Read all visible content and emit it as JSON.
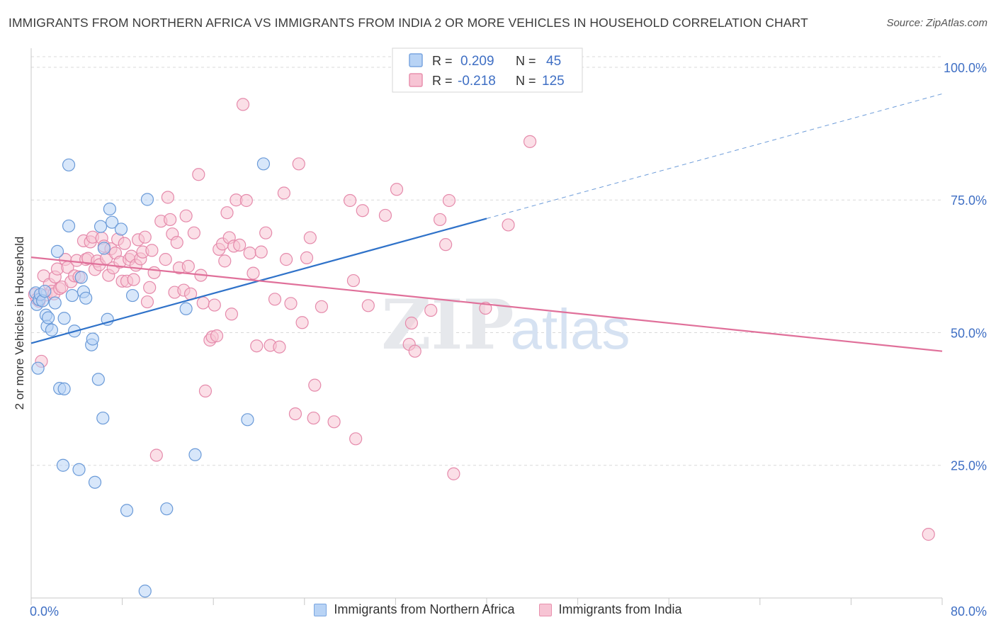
{
  "header": {
    "title": "IMMIGRANTS FROM NORTHERN AFRICA VS IMMIGRANTS FROM INDIA 2 OR MORE VEHICLES IN HOUSEHOLD CORRELATION CHART",
    "source": "Source: ZipAtlas.com"
  },
  "watermark": {
    "zip": "ZIP",
    "atlas": "atlas"
  },
  "legend_box": {
    "r_label": "R =",
    "n_label": "N =",
    "rows": [
      {
        "r": "0.209",
        "n": "45"
      },
      {
        "r": "-0.218",
        "n": "125"
      }
    ]
  },
  "colors": {
    "blue_fill": "#b8d3f5",
    "blue_stroke": "#6a9ad8",
    "blue_line": "#2f72c9",
    "pink_fill": "#f7c4d4",
    "pink_stroke": "#e58aab",
    "pink_line": "#e0709a",
    "tick_text": "#3f6fc4",
    "grid": "#d9d9d9"
  },
  "chart_data": {
    "type": "scatter",
    "title": "IMMIGRANTS FROM NORTHERN AFRICA VS IMMIGRANTS FROM INDIA 2 OR MORE VEHICLES IN HOUSEHOLD CORRELATION CHART",
    "xlabel": "",
    "ylabel": "2 or more Vehicles in Household",
    "xlim": [
      0,
      80
    ],
    "ylim": [
      0,
      102
    ],
    "x_tick_labels": [
      "0.0%",
      "80.0%"
    ],
    "y_ticks": [
      25,
      50,
      75,
      100
    ],
    "y_tick_labels": [
      "25.0%",
      "50.0%",
      "75.0%",
      "100.0%"
    ],
    "grid": true,
    "legend_position": "bottom",
    "series": [
      {
        "name": "Immigrants from Northern Africa",
        "r": 0.209,
        "n": 45,
        "trend": {
          "x0": 0,
          "y0": 48.0,
          "x1": 40,
          "y1": 71.5,
          "dash_x1": 80,
          "dash_y1": 95.0
        },
        "points": [
          [
            0.4,
            57.5
          ],
          [
            0.5,
            55.3
          ],
          [
            0.6,
            43.3
          ],
          [
            0.7,
            56.2
          ],
          [
            0.8,
            57.2
          ],
          [
            1.0,
            56.0
          ],
          [
            1.2,
            57.8
          ],
          [
            1.3,
            53.3
          ],
          [
            1.4,
            51.2
          ],
          [
            1.5,
            52.8
          ],
          [
            1.8,
            50.5
          ],
          [
            2.1,
            55.6
          ],
          [
            2.3,
            65.3
          ],
          [
            2.5,
            39.5
          ],
          [
            2.9,
            52.7
          ],
          [
            2.9,
            39.4
          ],
          [
            2.8,
            25.0
          ],
          [
            3.3,
            70.1
          ],
          [
            3.3,
            81.6
          ],
          [
            3.6,
            57.0
          ],
          [
            3.8,
            50.3
          ],
          [
            4.2,
            24.2
          ],
          [
            4.4,
            60.4
          ],
          [
            4.6,
            57.7
          ],
          [
            4.8,
            56.5
          ],
          [
            5.3,
            47.7
          ],
          [
            5.4,
            48.8
          ],
          [
            5.6,
            21.8
          ],
          [
            5.9,
            41.2
          ],
          [
            6.1,
            70.0
          ],
          [
            6.4,
            65.9
          ],
          [
            6.3,
            33.9
          ],
          [
            6.7,
            52.5
          ],
          [
            6.9,
            73.3
          ],
          [
            7.1,
            70.8
          ],
          [
            7.9,
            69.5
          ],
          [
            8.4,
            16.5
          ],
          [
            8.9,
            57.0
          ],
          [
            10.0,
            1.3
          ],
          [
            10.2,
            75.1
          ],
          [
            11.9,
            16.8
          ],
          [
            13.6,
            54.5
          ],
          [
            14.4,
            27.0
          ],
          [
            19.0,
            33.6
          ],
          [
            20.4,
            81.8
          ]
        ]
      },
      {
        "name": "Immigrants from India",
        "r": -0.218,
        "n": 125,
        "trend": {
          "x0": 0,
          "y0": 64.2,
          "x1": 80,
          "y1": 46.5
        },
        "points": [
          [
            0.3,
            57.2
          ],
          [
            0.5,
            56.3
          ],
          [
            0.7,
            55.9
          ],
          [
            0.9,
            44.6
          ],
          [
            1.1,
            60.7
          ],
          [
            1.3,
            57.1
          ],
          [
            1.6,
            59.1
          ],
          [
            1.8,
            57.8
          ],
          [
            2.0,
            57.3
          ],
          [
            2.1,
            60.5
          ],
          [
            2.3,
            62.0
          ],
          [
            2.5,
            58.3
          ],
          [
            2.7,
            58.6
          ],
          [
            3.0,
            63.8
          ],
          [
            3.2,
            62.3
          ],
          [
            3.5,
            59.6
          ],
          [
            3.8,
            60.7
          ],
          [
            4.0,
            63.6
          ],
          [
            4.2,
            60.5
          ],
          [
            4.6,
            67.3
          ],
          [
            4.8,
            63.8
          ],
          [
            5.0,
            64.0
          ],
          [
            5.2,
            67.1
          ],
          [
            5.4,
            68.0
          ],
          [
            5.6,
            61.9
          ],
          [
            5.8,
            63.5
          ],
          [
            6.0,
            62.8
          ],
          [
            6.2,
            67.8
          ],
          [
            6.4,
            66.3
          ],
          [
            6.6,
            64.0
          ],
          [
            6.8,
            60.8
          ],
          [
            7.0,
            65.8
          ],
          [
            7.2,
            62.2
          ],
          [
            7.4,
            65.0
          ],
          [
            7.6,
            67.6
          ],
          [
            7.8,
            63.3
          ],
          [
            8.0,
            59.7
          ],
          [
            8.2,
            66.8
          ],
          [
            8.4,
            59.7
          ],
          [
            8.6,
            63.8
          ],
          [
            8.8,
            64.4
          ],
          [
            9.0,
            60.0
          ],
          [
            9.2,
            62.7
          ],
          [
            9.4,
            67.5
          ],
          [
            9.6,
            63.9
          ],
          [
            9.8,
            65.2
          ],
          [
            10.0,
            68.0
          ],
          [
            10.2,
            55.8
          ],
          [
            10.4,
            58.5
          ],
          [
            10.6,
            65.5
          ],
          [
            10.8,
            61.3
          ],
          [
            11.0,
            26.9
          ],
          [
            11.4,
            71.0
          ],
          [
            11.8,
            63.8
          ],
          [
            12.0,
            75.5
          ],
          [
            12.2,
            71.3
          ],
          [
            12.4,
            68.6
          ],
          [
            12.6,
            57.6
          ],
          [
            12.8,
            67.0
          ],
          [
            13.0,
            62.2
          ],
          [
            13.4,
            58.0
          ],
          [
            13.6,
            72.0
          ],
          [
            13.8,
            62.5
          ],
          [
            14.0,
            57.3
          ],
          [
            14.3,
            68.8
          ],
          [
            14.7,
            79.8
          ],
          [
            14.9,
            60.8
          ],
          [
            15.1,
            55.6
          ],
          [
            15.3,
            39.0
          ],
          [
            15.7,
            48.6
          ],
          [
            15.9,
            49.2
          ],
          [
            16.1,
            55.2
          ],
          [
            16.3,
            49.4
          ],
          [
            16.5,
            65.7
          ],
          [
            16.8,
            66.7
          ],
          [
            17.0,
            63.5
          ],
          [
            17.2,
            72.6
          ],
          [
            17.4,
            67.9
          ],
          [
            17.6,
            53.5
          ],
          [
            17.8,
            66.3
          ],
          [
            18.0,
            75.0
          ],
          [
            18.3,
            66.5
          ],
          [
            18.6,
            93.0
          ],
          [
            18.9,
            74.9
          ],
          [
            19.2,
            65.0
          ],
          [
            19.5,
            61.2
          ],
          [
            19.8,
            47.5
          ],
          [
            20.2,
            65.2
          ],
          [
            20.6,
            68.8
          ],
          [
            21.0,
            47.6
          ],
          [
            21.4,
            56.3
          ],
          [
            21.8,
            47.3
          ],
          [
            22.2,
            76.3
          ],
          [
            22.4,
            63.8
          ],
          [
            22.8,
            55.5
          ],
          [
            23.2,
            34.7
          ],
          [
            23.5,
            81.8
          ],
          [
            23.8,
            51.9
          ],
          [
            24.2,
            64.1
          ],
          [
            24.5,
            67.9
          ],
          [
            24.8,
            33.9
          ],
          [
            24.9,
            40.1
          ],
          [
            25.5,
            54.9
          ],
          [
            26.6,
            33.2
          ],
          [
            28.0,
            74.9
          ],
          [
            28.3,
            59.8
          ],
          [
            28.5,
            30.0
          ],
          [
            29.1,
            73.0
          ],
          [
            29.6,
            55.1
          ],
          [
            31.1,
            72.1
          ],
          [
            32.1,
            77.0
          ],
          [
            33.2,
            47.8
          ],
          [
            33.4,
            51.8
          ],
          [
            33.7,
            46.5
          ],
          [
            35.1,
            54.2
          ],
          [
            35.9,
            71.3
          ],
          [
            36.4,
            66.6
          ],
          [
            36.7,
            74.9
          ],
          [
            37.1,
            23.4
          ],
          [
            39.9,
            54.6
          ],
          [
            41.9,
            70.3
          ],
          [
            43.8,
            86.0
          ],
          [
            78.8,
            12.0
          ]
        ]
      }
    ]
  },
  "bottom_legend": {
    "items": [
      {
        "label": "Immigrants from Northern Africa"
      },
      {
        "label": "Immigrants from India"
      }
    ]
  }
}
